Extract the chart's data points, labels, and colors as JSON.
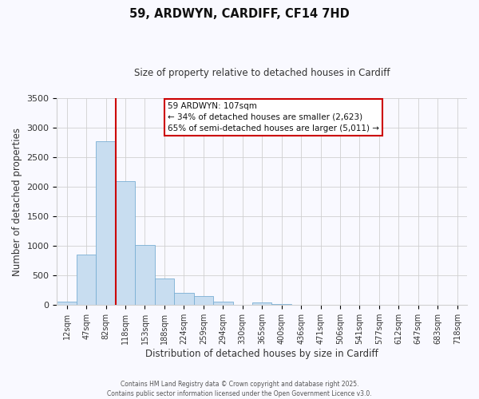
{
  "title": "59, ARDWYN, CARDIFF, CF14 7HD",
  "subtitle": "Size of property relative to detached houses in Cardiff",
  "xlabel": "Distribution of detached houses by size in Cardiff",
  "ylabel": "Number of detached properties",
  "bin_labels": [
    "12sqm",
    "47sqm",
    "82sqm",
    "118sqm",
    "153sqm",
    "188sqm",
    "224sqm",
    "259sqm",
    "294sqm",
    "330sqm",
    "365sqm",
    "400sqm",
    "436sqm",
    "471sqm",
    "506sqm",
    "541sqm",
    "577sqm",
    "612sqm",
    "647sqm",
    "683sqm",
    "718sqm"
  ],
  "bar_values": [
    60,
    850,
    2775,
    2100,
    1020,
    450,
    205,
    145,
    55,
    0,
    40,
    20,
    5,
    0,
    0,
    0,
    0,
    0,
    0,
    0,
    0
  ],
  "bar_color": "#c8ddf0",
  "bar_edge_color": "#7aafd4",
  "vline_color": "#cc0000",
  "ylim": [
    0,
    3500
  ],
  "yticks": [
    0,
    500,
    1000,
    1500,
    2000,
    2500,
    3000,
    3500
  ],
  "annotation_text_line1": "59 ARDWYN: 107sqm",
  "annotation_text_line2": "← 34% of detached houses are smaller (2,623)",
  "annotation_text_line3": "65% of semi-detached houses are larger (5,011) →",
  "footer_line1": "Contains HM Land Registry data © Crown copyright and database right 2025.",
  "footer_line2": "Contains public sector information licensed under the Open Government Licence v3.0.",
  "background_color": "#f9f9ff",
  "grid_color": "#d0d0d0"
}
